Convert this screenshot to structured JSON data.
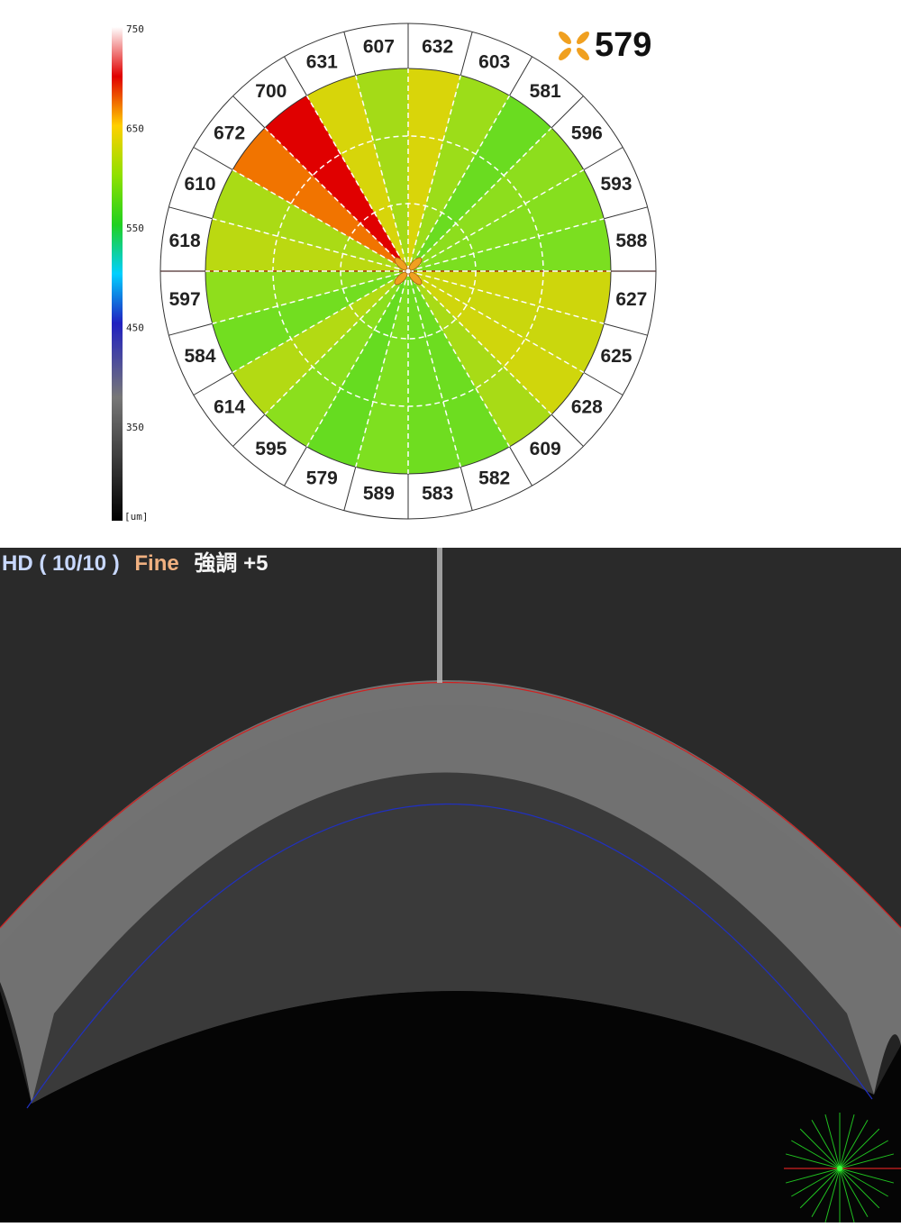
{
  "thickness_map": {
    "center_value": "579",
    "scale": {
      "ticks": [
        "750",
        "650",
        "550",
        "450",
        "350"
      ],
      "unit": "[um]"
    },
    "sectors": [
      "632",
      "603",
      "581",
      "596",
      "593",
      "588",
      "627",
      "625",
      "628",
      "609",
      "582",
      "583",
      "589",
      "579",
      "595",
      "614",
      "584",
      "597",
      "618",
      "610",
      "672",
      "700",
      "631",
      "607"
    ]
  },
  "scan": {
    "mode": "HD ( 10/10 )",
    "quality": "Fine",
    "enhance": "強調 +5"
  }
}
